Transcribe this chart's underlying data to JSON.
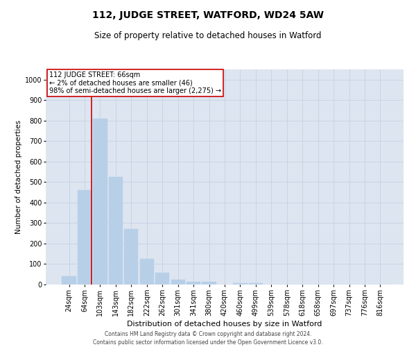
{
  "title": "112, JUDGE STREET, WATFORD, WD24 5AW",
  "subtitle": "Size of property relative to detached houses in Watford",
  "xlabel": "Distribution of detached houses by size in Watford",
  "ylabel": "Number of detached properties",
  "categories": [
    "24sqm",
    "64sqm",
    "103sqm",
    "143sqm",
    "182sqm",
    "222sqm",
    "262sqm",
    "301sqm",
    "341sqm",
    "380sqm",
    "420sqm",
    "460sqm",
    "499sqm",
    "539sqm",
    "578sqm",
    "618sqm",
    "658sqm",
    "697sqm",
    "737sqm",
    "776sqm",
    "816sqm"
  ],
  "values": [
    40,
    460,
    810,
    525,
    270,
    125,
    58,
    25,
    12,
    12,
    0,
    8,
    8,
    0,
    0,
    0,
    0,
    0,
    0,
    0,
    0
  ],
  "bar_color": "#b8cfe8",
  "bar_edge_color": "#b8cfe8",
  "grid_color": "#c8d4e4",
  "background_color": "#dde5f0",
  "vline_color": "#cc0000",
  "vline_x": 1.45,
  "ylim": [
    0,
    1050
  ],
  "yticks": [
    0,
    100,
    200,
    300,
    400,
    500,
    600,
    700,
    800,
    900,
    1000
  ],
  "annotation_text": "112 JUDGE STREET: 66sqm\n← 2% of detached houses are smaller (46)\n98% of semi-detached houses are larger (2,275) →",
  "annotation_box_color": "#cc0000",
  "footer_line1": "Contains HM Land Registry data © Crown copyright and database right 2024.",
  "footer_line2": "Contains public sector information licensed under the Open Government Licence v3.0.",
  "title_fontsize": 10,
  "subtitle_fontsize": 8.5,
  "xlabel_fontsize": 8,
  "ylabel_fontsize": 7.5,
  "tick_fontsize": 7,
  "annot_fontsize": 7,
  "footer_fontsize": 5.5
}
